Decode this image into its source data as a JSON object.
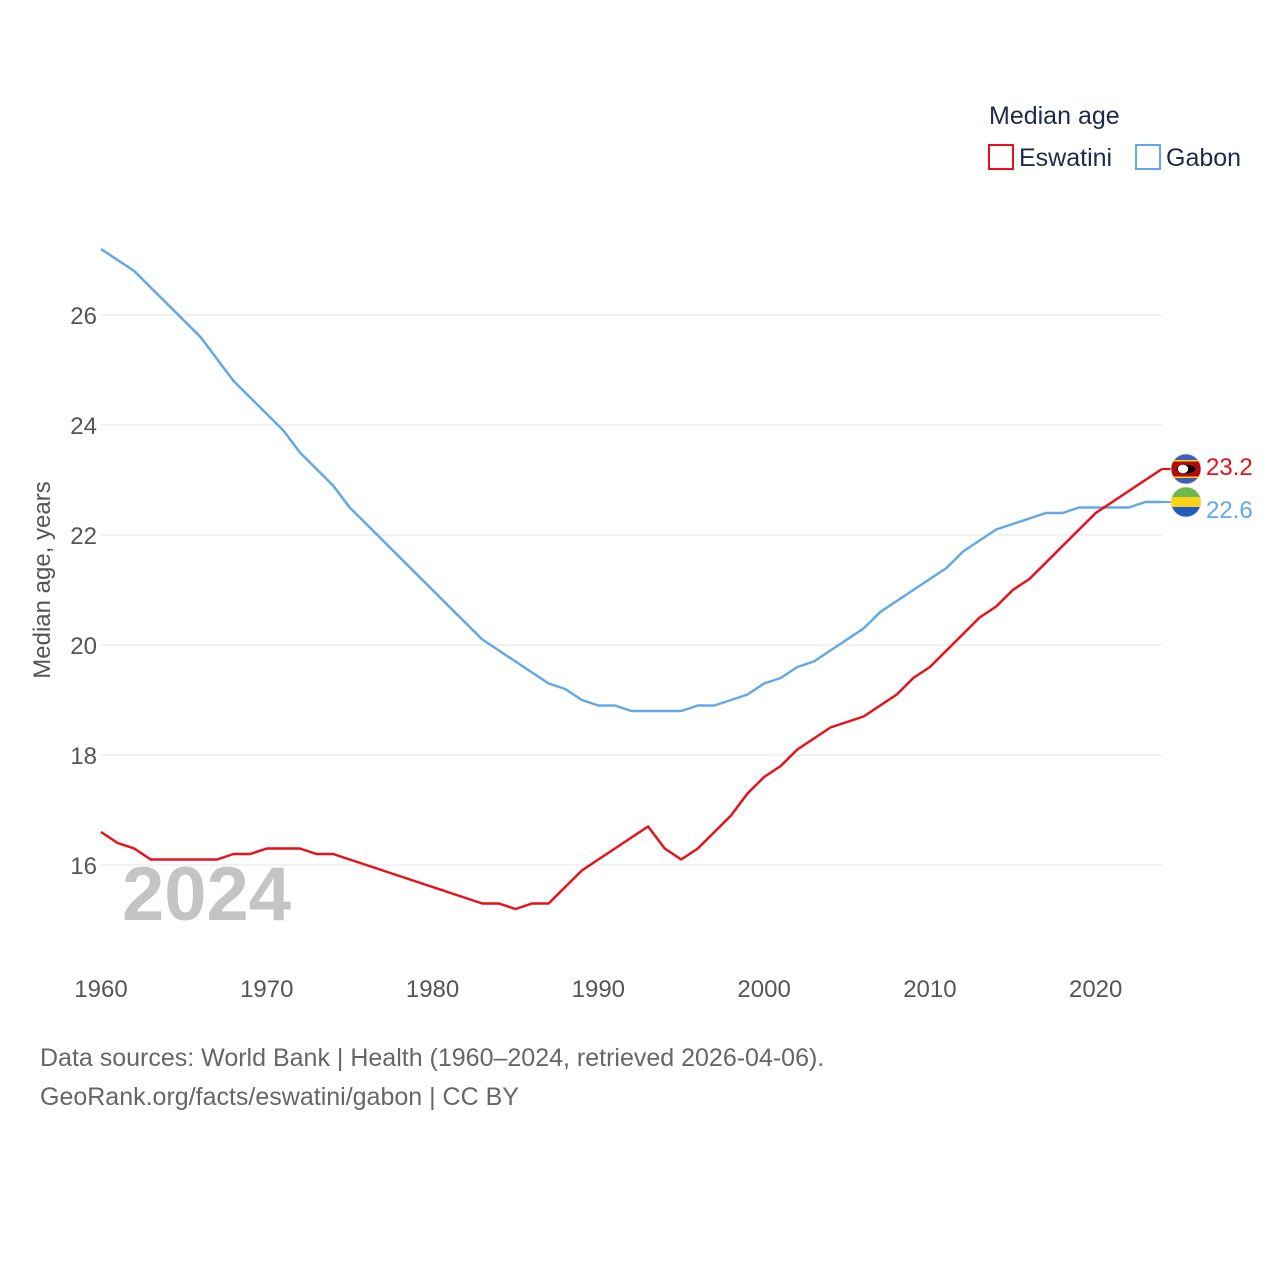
{
  "chart_data": {
    "type": "line",
    "ylabel": "Median age, years",
    "xlabel": "",
    "xlim": [
      1960,
      2024
    ],
    "ylim": [
      14.4,
      27.3
    ],
    "yticks": [
      16,
      18,
      20,
      22,
      24,
      26
    ],
    "xticks": [
      1960,
      1970,
      1980,
      1990,
      2000,
      2010,
      2020
    ],
    "year_label": "2024",
    "legend": {
      "title": "Median age",
      "position": "top-right"
    },
    "x": [
      1960,
      1961,
      1962,
      1963,
      1964,
      1965,
      1966,
      1967,
      1968,
      1969,
      1970,
      1971,
      1972,
      1973,
      1974,
      1975,
      1976,
      1977,
      1978,
      1979,
      1980,
      1981,
      1982,
      1983,
      1984,
      1985,
      1986,
      1987,
      1988,
      1989,
      1990,
      1991,
      1992,
      1993,
      1994,
      1995,
      1996,
      1997,
      1998,
      1999,
      2000,
      2001,
      2002,
      2003,
      2004,
      2005,
      2006,
      2007,
      2008,
      2009,
      2010,
      2011,
      2012,
      2013,
      2014,
      2015,
      2016,
      2017,
      2018,
      2019,
      2020,
      2021,
      2022,
      2023,
      2024
    ],
    "series": [
      {
        "name": "Eswatini",
        "color": "#e8101a",
        "end_value": "23.2",
        "flag": "eswatini-flag",
        "values": [
          16.6,
          16.4,
          16.3,
          16.1,
          16.1,
          16.1,
          16.1,
          16.1,
          16.2,
          16.2,
          16.3,
          16.3,
          16.3,
          16.2,
          16.2,
          16.1,
          16.0,
          15.9,
          15.8,
          15.7,
          15.6,
          15.5,
          15.4,
          15.3,
          15.3,
          15.2,
          15.3,
          15.3,
          15.6,
          15.9,
          16.1,
          16.3,
          16.5,
          16.7,
          16.3,
          16.1,
          16.3,
          16.6,
          16.9,
          17.3,
          17.6,
          17.8,
          18.1,
          18.3,
          18.5,
          18.6,
          18.7,
          18.9,
          19.1,
          19.4,
          19.6,
          19.9,
          20.2,
          20.5,
          20.7,
          21.0,
          21.2,
          21.5,
          21.8,
          22.1,
          22.4,
          22.6,
          22.8,
          23.0,
          23.2
        ]
      },
      {
        "name": "Gabon",
        "color": "#63a8e6",
        "end_value": "22.6",
        "flag": "gabon-flag",
        "values": [
          27.2,
          27.0,
          26.8,
          26.5,
          26.2,
          25.9,
          25.6,
          25.2,
          24.8,
          24.5,
          24.2,
          23.9,
          23.5,
          23.2,
          22.9,
          22.5,
          22.2,
          21.9,
          21.6,
          21.3,
          21.0,
          20.7,
          20.4,
          20.1,
          19.9,
          19.7,
          19.5,
          19.3,
          19.2,
          19.0,
          18.9,
          18.9,
          18.8,
          18.8,
          18.8,
          18.8,
          18.9,
          18.9,
          19.0,
          19.1,
          19.3,
          19.4,
          19.6,
          19.7,
          19.9,
          20.1,
          20.3,
          20.6,
          20.8,
          21.0,
          21.2,
          21.4,
          21.7,
          21.9,
          22.1,
          22.2,
          22.3,
          22.4,
          22.4,
          22.5,
          22.5,
          22.5,
          22.5,
          22.6,
          22.6
        ]
      }
    ]
  },
  "footer": {
    "source_line": "Data sources: World Bank | Health (1960–2024, retrieved 2026-04-06).",
    "attribution_line": "GeoRank.org/facts/eswatini/gabon | CC BY"
  }
}
